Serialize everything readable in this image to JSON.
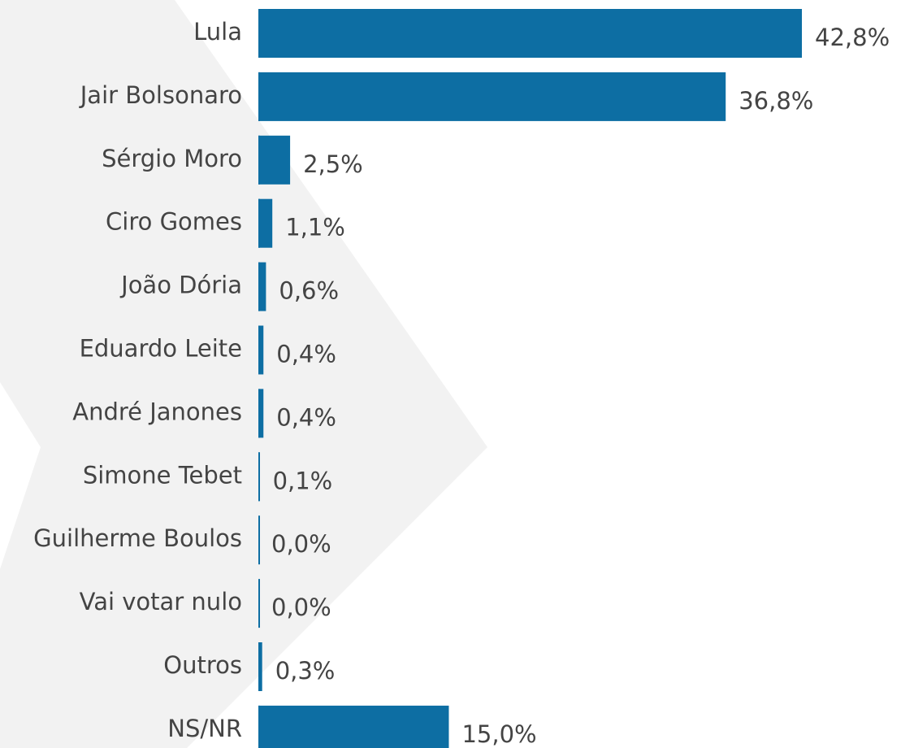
{
  "chart_data": {
    "type": "bar",
    "orientation": "horizontal",
    "categories": [
      "Lula",
      "Jair Bolsonaro",
      "Sérgio Moro",
      "Ciro Gomes",
      "João Dória",
      "Eduardo Leite",
      "André Janones",
      "Simone Tebet",
      "Guilherme Boulos",
      "Vai votar nulo",
      "Outros",
      "NS/NR"
    ],
    "values": [
      42.8,
      36.8,
      2.5,
      1.1,
      0.6,
      0.4,
      0.4,
      0.1,
      0.0,
      0.0,
      0.3,
      15.0
    ],
    "value_labels": [
      "42,8%",
      "36,8%",
      "2,5%",
      "1,1%",
      "0,6%",
      "0,4%",
      "0,4%",
      "0,1%",
      "0,0%",
      "0,0%",
      "0,3%",
      "15,0%"
    ],
    "color": "#0d6ea3"
  }
}
